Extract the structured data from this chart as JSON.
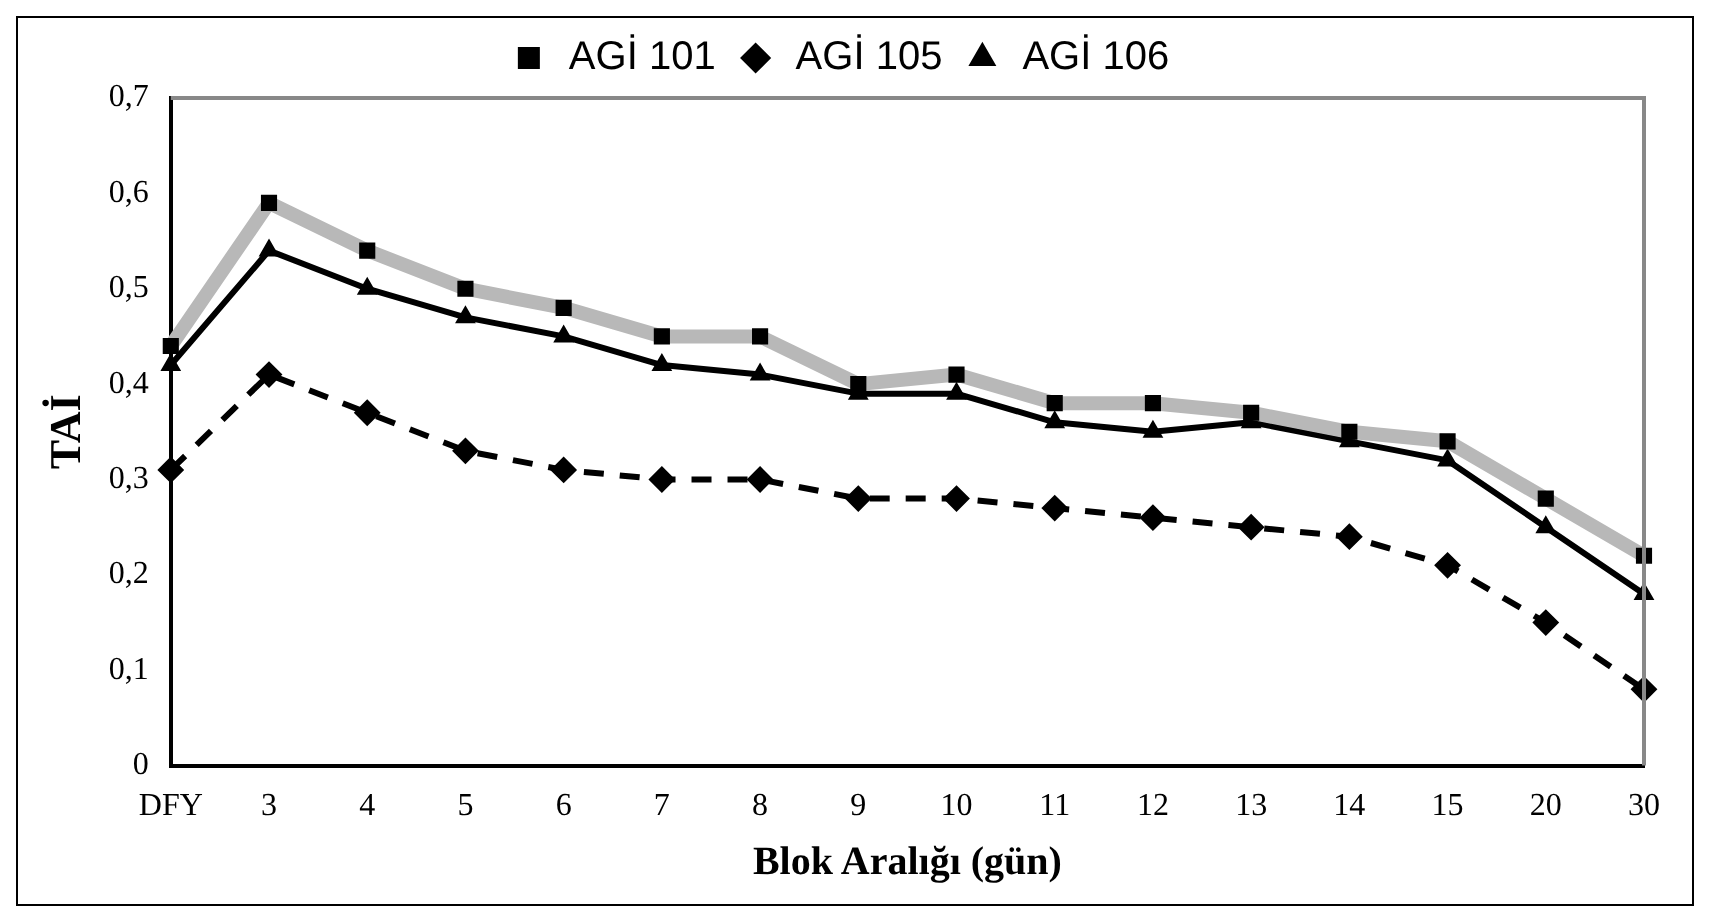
{
  "chart_data": {
    "type": "line",
    "xlabel": "Blok Aralığı (gün)",
    "ylabel": "TAİ",
    "categories": [
      "DFY",
      "3",
      "4",
      "5",
      "6",
      "7",
      "8",
      "9",
      "10",
      "11",
      "12",
      "13",
      "14",
      "15",
      "20",
      "30"
    ],
    "series": [
      {
        "name": "AGİ 101",
        "color": "#b8b8b8",
        "marker": "square",
        "line_style": "solid",
        "values": [
          0.44,
          0.59,
          0.54,
          0.5,
          0.48,
          0.45,
          0.45,
          0.4,
          0.41,
          0.38,
          0.38,
          0.37,
          0.35,
          0.34,
          0.28,
          0.22
        ]
      },
      {
        "name": "AGİ 105",
        "color": "#000000",
        "marker": "diamond",
        "line_style": "dashed",
        "values": [
          0.31,
          0.41,
          0.37,
          0.33,
          0.31,
          0.3,
          0.3,
          0.28,
          0.28,
          0.27,
          0.26,
          0.25,
          0.24,
          0.21,
          0.15,
          0.08
        ]
      },
      {
        "name": "AGİ 106",
        "color": "#000000",
        "marker": "triangle",
        "line_style": "solid",
        "values": [
          0.42,
          0.54,
          0.5,
          0.47,
          0.45,
          0.42,
          0.41,
          0.39,
          0.39,
          0.36,
          0.35,
          0.36,
          0.34,
          0.32,
          0.25,
          0.18
        ]
      }
    ],
    "ylim": [
      0,
      0.7
    ],
    "yticks": [
      0,
      {
        "value": 0.1,
        "label": "0,1"
      },
      {
        "value": 0.2,
        "label": "0,2"
      },
      {
        "value": 0.3,
        "label": "0,3"
      },
      {
        "value": 0.4,
        "label": "0,4"
      },
      {
        "value": 0.5,
        "label": "0,5"
      },
      {
        "value": 0.6,
        "label": "0,6"
      },
      {
        "value": 0.7,
        "label": "0,7"
      }
    ],
    "grid": false,
    "legend": "top"
  }
}
